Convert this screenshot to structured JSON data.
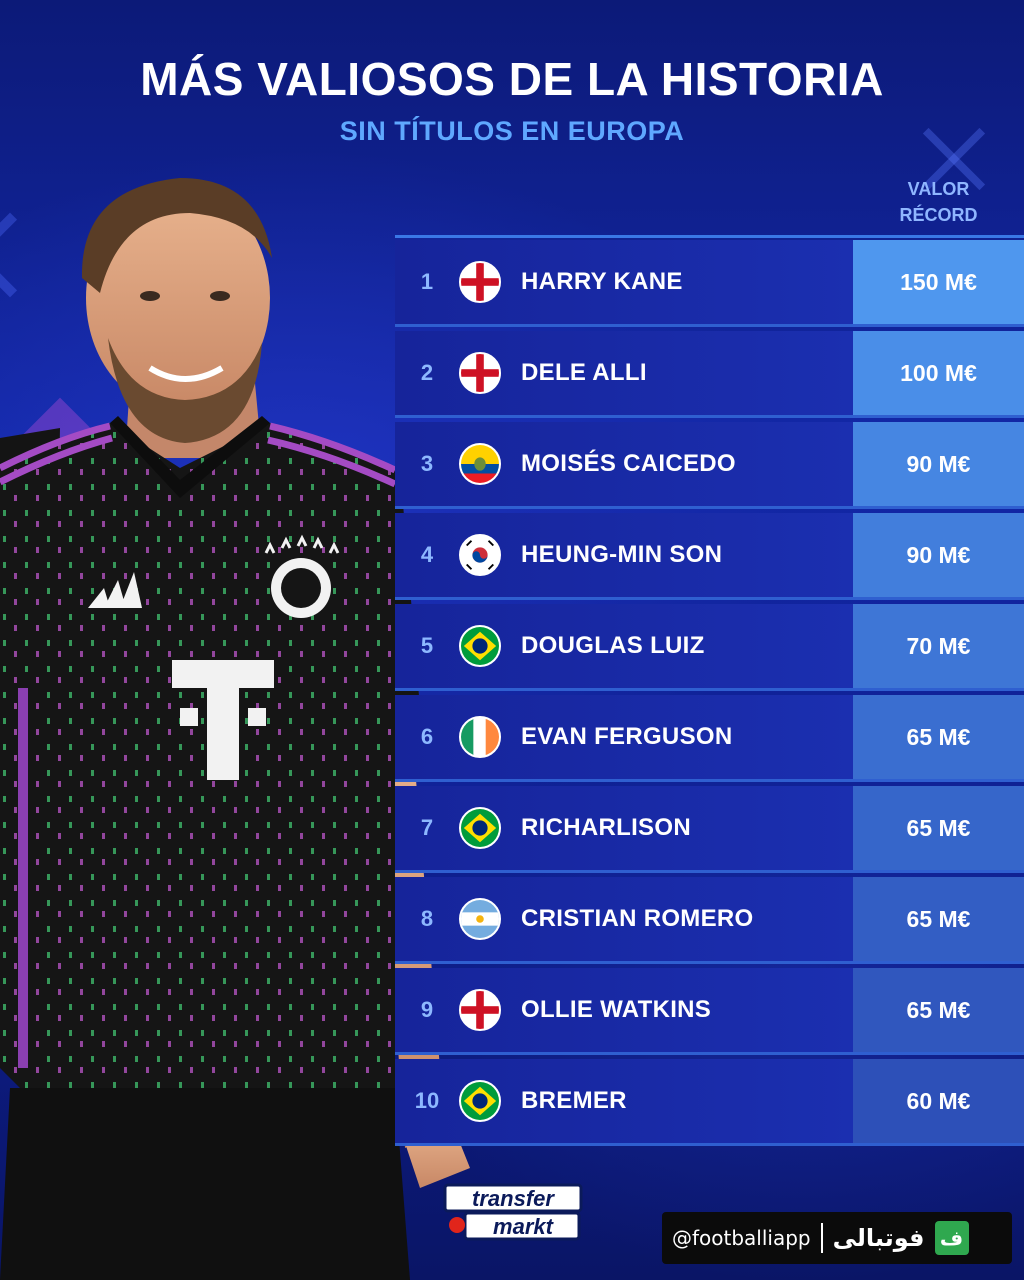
{
  "header": {
    "title": "MÁS VALIOSOS DE LA HISTORIA",
    "subtitle": "SIN TÍTULOS EN EUROPA",
    "value_column_line1": "VALOR",
    "value_column_line2": "RÉCORD"
  },
  "rows": [
    {
      "rank": "1",
      "flag": "england-flag-icon",
      "name": "HARRY KANE",
      "value": "150 M€",
      "value_color": "#4f97ee"
    },
    {
      "rank": "2",
      "flag": "england-flag-icon",
      "name": "DELE ALLI",
      "value": "100 M€",
      "value_color": "#4a8ee8"
    },
    {
      "rank": "3",
      "flag": "ecuador-flag-icon",
      "name": "MOISÉS CAICEDO",
      "value": "90 M€",
      "value_color": "#4686e2"
    },
    {
      "rank": "4",
      "flag": "south-korea-flag-icon",
      "name": "HEUNG-MIN SON",
      "value": "90 M€",
      "value_color": "#427edc"
    },
    {
      "rank": "5",
      "flag": "brazil-flag-icon",
      "name": "DOUGLAS LUIZ",
      "value": "70 M€",
      "value_color": "#3e76d6"
    },
    {
      "rank": "6",
      "flag": "ireland-flag-icon",
      "name": "EVAN FERGUSON",
      "value": "65 M€",
      "value_color": "#3a6ed0"
    },
    {
      "rank": "7",
      "flag": "brazil-flag-icon",
      "name": "RICHARLISON",
      "value": "65 M€",
      "value_color": "#3666ca"
    },
    {
      "rank": "8",
      "flag": "argentina-flag-icon",
      "name": "CRISTIAN ROMERO",
      "value": "65 M€",
      "value_color": "#335ec4"
    },
    {
      "rank": "9",
      "flag": "england-flag-icon",
      "name": "OLLIE WATKINS",
      "value": "65 M€",
      "value_color": "#3057be"
    },
    {
      "rank": "10",
      "flag": "brazil-flag-icon",
      "name": "BREMER",
      "value": "60 M€",
      "value_color": "#2d50b8"
    }
  ],
  "branding": {
    "tm_line1": "transfer",
    "tm_line2": "markt",
    "handle": "@footballiapp",
    "brand_name": "فوتبالی",
    "brand_icon_letter": "ف"
  },
  "colors": {
    "accent": "#5fa8ff",
    "background": "#1328a8",
    "row_bg": "#1b2fb0"
  }
}
